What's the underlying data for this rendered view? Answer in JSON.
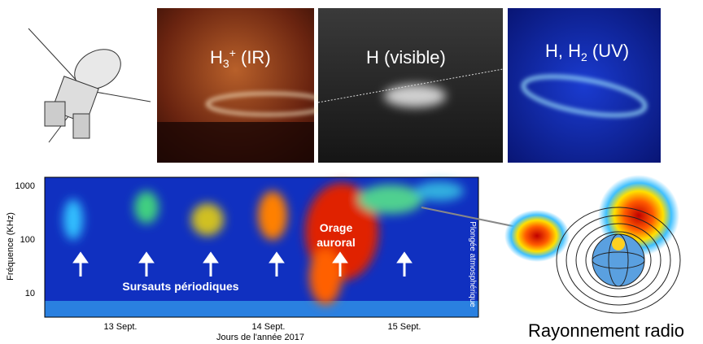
{
  "images": [
    {
      "label": {
        "base": "H",
        "sub": "3",
        "sup": "+",
        "rest": " (IR)"
      }
    },
    {
      "label": {
        "base": "H (visible)"
      }
    },
    {
      "label": {
        "base": "H, H",
        "sub": "2",
        "rest": " (UV)"
      }
    }
  ],
  "spectrogram": {
    "ylabel": "Fréquence (KHz)",
    "yticks": [
      "1000",
      "100",
      "10"
    ],
    "xticks": [
      "13 Sept.",
      "14 Sept.",
      "15 Sept."
    ],
    "xlabel": "Jours de l'année 2017",
    "annotations": [
      "Sursauts périodiques",
      "Orage",
      "auroral",
      "Plongée atmosphérique"
    ]
  },
  "caption": "Rayonnement radio"
}
